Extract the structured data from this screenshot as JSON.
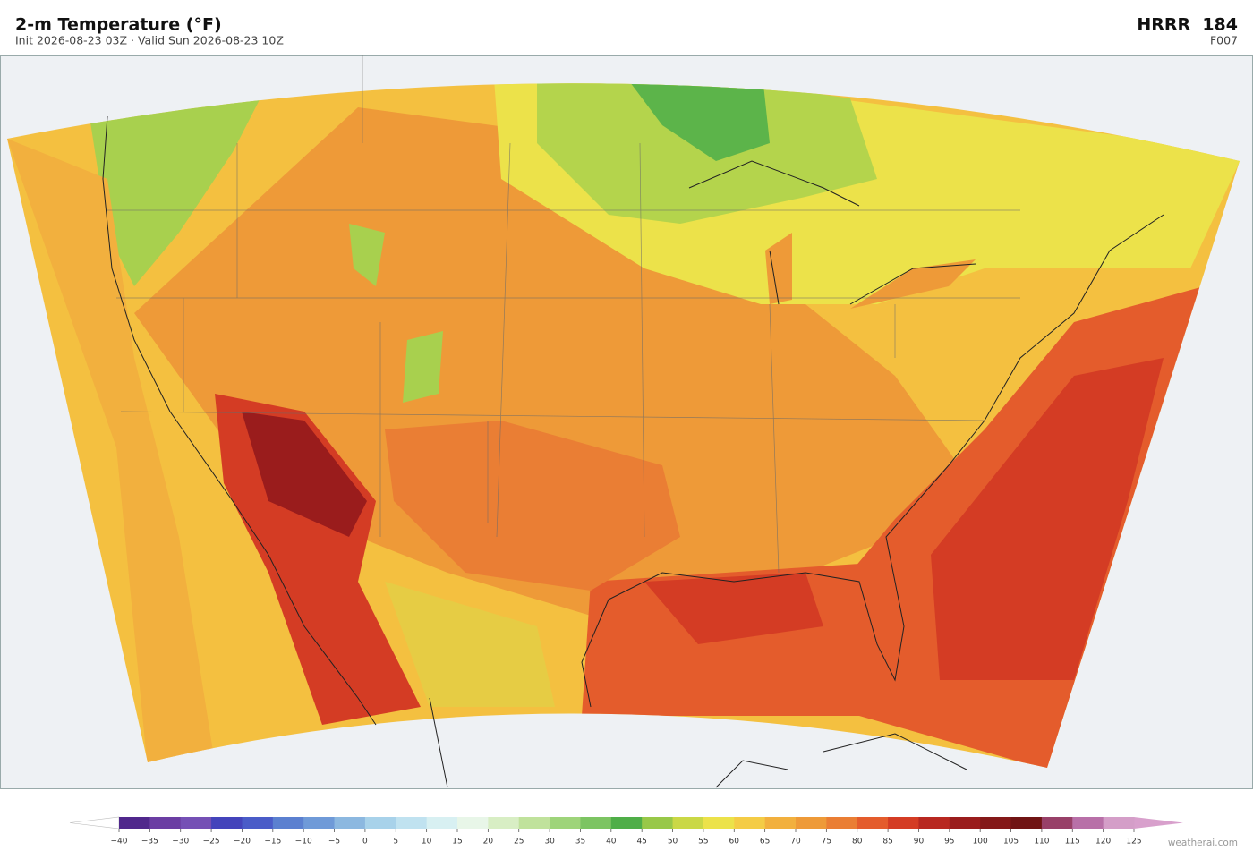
{
  "header": {
    "title": "2-m Temperature  (°F)",
    "subtitle": "Init 2026-08-23 03Z   ·   Valid Sun 2026-08-23 10Z",
    "model": "HRRR  184",
    "forecast_hour": "F007"
  },
  "colorbar": {
    "ticks": [
      {
        "value": -40,
        "label": "−40"
      },
      {
        "value": -35,
        "label": "−35"
      },
      {
        "value": -30,
        "label": "−30"
      },
      {
        "value": -25,
        "label": "−25"
      },
      {
        "value": -20,
        "label": "−20"
      },
      {
        "value": -15,
        "label": "−15"
      },
      {
        "value": -10,
        "label": "−10"
      },
      {
        "value": -5,
        "label": "−5"
      },
      0,
      5,
      10,
      15,
      20,
      25,
      30,
      35,
      40,
      45,
      50,
      55,
      60,
      65,
      70,
      75,
      80,
      85,
      90,
      95,
      100,
      105,
      110,
      115,
      120,
      125
    ],
    "colors": [
      "#50288c",
      "#6b3ea3",
      "#7550b5",
      "#4444bb",
      "#4a5cc8",
      "#5b80d0",
      "#6f9ad8",
      "#8cb8e0",
      "#a8d2ea",
      "#c0e2f0",
      "#d8f0f2",
      "#e8f6e8",
      "#d8eec4",
      "#c0e29c",
      "#9ed47a",
      "#7cc462",
      "#4fae48",
      "#98c848",
      "#cad846",
      "#ece24a",
      "#f4cc46",
      "#f2b03e",
      "#ee9a38",
      "#ea7e34",
      "#e45c2c",
      "#d43c24",
      "#b82820",
      "#9a1c1c",
      "#841818",
      "#701414",
      "#984068",
      "#b870a8",
      "#d49ec8"
    ],
    "under_color": "#ffffff",
    "over_color": "#d8a0cc"
  },
  "watermark": "weatherai.com"
}
